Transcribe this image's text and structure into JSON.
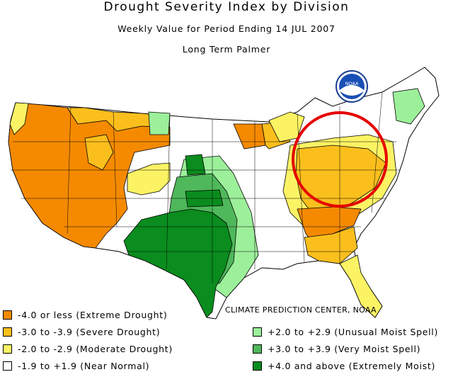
{
  "header": {
    "title": "Drought Severity Index by Division",
    "subtitle": "Weekly Value for Period Ending 14 JUL 2007",
    "index_name": "Long Term Palmer"
  },
  "logo": {
    "text": "NOAA"
  },
  "credit": "CLIMATE PREDICTION CENTER, NOAA",
  "colors": {
    "extreme_drought": "#f58a00",
    "severe_drought": "#fbbf1d",
    "moderate_drought": "#fcf364",
    "near_normal": "#ffffff",
    "unusual_moist": "#9cf09a",
    "very_moist": "#4fb85b",
    "extremely_moist": "#0a8c1e",
    "highlight_circle": "#e60000"
  },
  "legend": {
    "left": [
      {
        "label": "-4.0 or less (Extreme Drought)",
        "color": "#f58a00"
      },
      {
        "label": "-3.0 to -3.9 (Severe Drought)",
        "color": "#fbbf1d"
      },
      {
        "label": "-2.0 to -2.9 (Moderate Drought)",
        "color": "#fcf364"
      },
      {
        "label": "-1.9 to +1.9 (Near Normal)",
        "color": "#ffffff"
      }
    ],
    "right": [
      {
        "label": "+2.0 to +2.9 (Unusual Moist Spell)",
        "color": "#9cf09a"
      },
      {
        "label": "+3.0 to +3.9 (Very Moist Spell)",
        "color": "#4fb85b"
      },
      {
        "label": "+4.0 and above (Extremely Moist)",
        "color": "#0a8c1e"
      }
    ]
  }
}
